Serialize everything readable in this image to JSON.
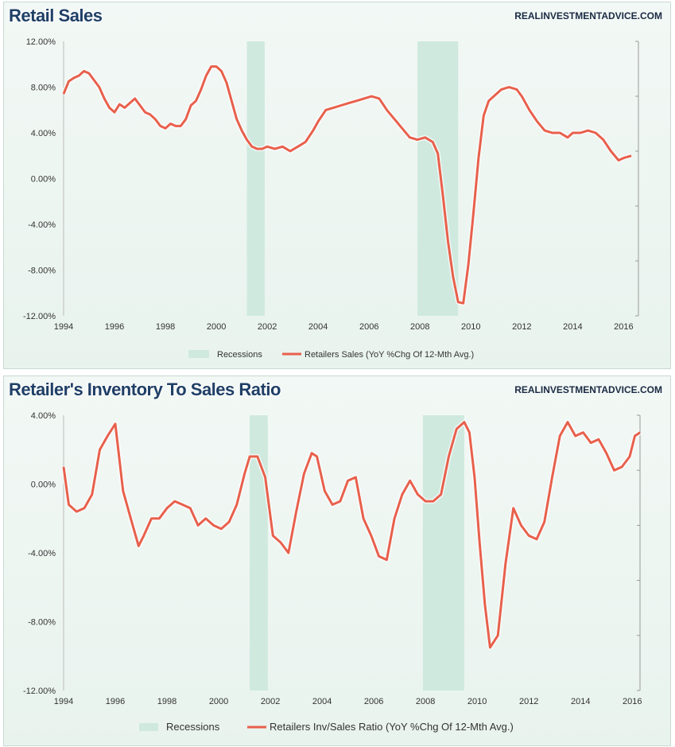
{
  "brand": "REALINVESTMENTADVICE.COM",
  "colors": {
    "line": "#e8604c",
    "recession": "#cfe9df",
    "axis": "#555555"
  },
  "chart_data": [
    {
      "type": "line",
      "title": "Retail Sales",
      "xlabel": "",
      "ylabel": "",
      "xlim": [
        1994,
        2016.3
      ],
      "ylim": [
        -12,
        12
      ],
      "yticks": [
        12,
        8,
        4,
        0,
        -4,
        -8,
        -12
      ],
      "ytick_labels": [
        "12.00%",
        "8.00%",
        "4.00%",
        "0.00%",
        "-4.00%",
        "-8.00%",
        "-12.00%"
      ],
      "xticks": [
        1994,
        1996,
        1998,
        2000,
        2002,
        2004,
        2006,
        2008,
        2010,
        2012,
        2014,
        2016
      ],
      "xtick_labels": [
        "1994",
        "1996",
        "1998",
        "2000",
        "2002",
        "2004",
        "2006",
        "2008",
        "2010",
        "2012",
        "2014",
        "2016"
      ],
      "recessions": [
        [
          2001.2,
          2001.9
        ],
        [
          2007.9,
          2009.5
        ]
      ],
      "legend": [
        "Recessions",
        "Retailers Sales (YoY %Chg Of 12-Mth Avg.)"
      ],
      "legend_position": "bottom",
      "series": [
        {
          "name": "Retailers Sales (YoY %Chg Of 12-Mth Avg.)",
          "x": [
            1994.0,
            1994.2,
            1994.4,
            1994.6,
            1994.8,
            1995.0,
            1995.2,
            1995.4,
            1995.6,
            1995.8,
            1996.0,
            1996.2,
            1996.4,
            1996.6,
            1996.8,
            1997.0,
            1997.2,
            1997.4,
            1997.6,
            1997.8,
            1998.0,
            1998.2,
            1998.4,
            1998.6,
            1998.8,
            1999.0,
            1999.2,
            1999.4,
            1999.6,
            1999.8,
            2000.0,
            2000.2,
            2000.4,
            2000.6,
            2000.8,
            2001.0,
            2001.2,
            2001.4,
            2001.6,
            2001.8,
            2002.0,
            2002.3,
            2002.6,
            2002.9,
            2003.2,
            2003.5,
            2003.8,
            2004.0,
            2004.3,
            2004.6,
            2004.9,
            2005.2,
            2005.5,
            2005.8,
            2006.1,
            2006.4,
            2006.7,
            2007.0,
            2007.3,
            2007.6,
            2007.9,
            2008.2,
            2008.5,
            2008.7,
            2008.9,
            2009.1,
            2009.3,
            2009.5,
            2009.7,
            2009.9,
            2010.1,
            2010.3,
            2010.5,
            2010.7,
            2010.9,
            2011.2,
            2011.5,
            2011.8,
            2012.0,
            2012.3,
            2012.6,
            2012.9,
            2013.2,
            2013.5,
            2013.8,
            2014.0,
            2014.3,
            2014.6,
            2014.9,
            2015.2,
            2015.5,
            2015.8,
            2016.0,
            2016.3
          ],
          "y": [
            7.4,
            8.5,
            8.8,
            9.0,
            9.4,
            9.2,
            8.6,
            8.0,
            7.0,
            6.2,
            5.8,
            6.5,
            6.2,
            6.6,
            7.0,
            6.4,
            5.8,
            5.6,
            5.2,
            4.6,
            4.4,
            4.8,
            4.6,
            4.6,
            5.2,
            6.4,
            6.8,
            7.8,
            9.0,
            9.8,
            9.8,
            9.4,
            8.4,
            6.8,
            5.2,
            4.2,
            3.4,
            2.8,
            2.6,
            2.6,
            2.8,
            2.6,
            2.8,
            2.4,
            2.8,
            3.2,
            4.2,
            5.0,
            6.0,
            6.2,
            6.4,
            6.6,
            6.8,
            7.0,
            7.2,
            7.0,
            6.0,
            5.2,
            4.4,
            3.6,
            3.4,
            3.6,
            3.2,
            2.2,
            -1.5,
            -5.5,
            -8.6,
            -10.8,
            -10.9,
            -7.5,
            -3.0,
            1.8,
            5.5,
            6.8,
            7.2,
            7.8,
            8.0,
            7.8,
            7.2,
            6.0,
            5.0,
            4.2,
            4.0,
            4.0,
            3.6,
            4.0,
            4.0,
            4.2,
            4.0,
            3.4,
            2.4,
            1.6,
            1.8,
            2.0
          ]
        }
      ]
    },
    {
      "type": "line",
      "title": "Retailer's Inventory To Sales Ratio",
      "xlabel": "",
      "ylabel": "",
      "xlim": [
        1994,
        2016.3
      ],
      "ylim": [
        -12,
        4
      ],
      "yticks": [
        4,
        0,
        -4,
        -8,
        -12
      ],
      "ytick_labels": [
        "4.00%",
        "0.00%",
        "-4.00%",
        "-8.00%",
        "-12.00%"
      ],
      "xticks": [
        1994,
        1996,
        1998,
        2000,
        2002,
        2004,
        2006,
        2008,
        2010,
        2012,
        2014,
        2016
      ],
      "xtick_labels": [
        "1994",
        "1996",
        "1998",
        "2000",
        "2002",
        "2004",
        "2006",
        "2008",
        "2010",
        "2012",
        "2014",
        "2016"
      ],
      "recessions": [
        [
          2001.2,
          2001.9
        ],
        [
          2007.9,
          2009.5
        ]
      ],
      "legend": [
        "Recessions",
        "Retailers Inv/Sales Ratio (YoY %Chg Of 12-Mth Avg.)"
      ],
      "legend_position": "bottom",
      "series": [
        {
          "name": "Retailers Inv/Sales Ratio (YoY %Chg Of 12-Mth Avg.)",
          "x": [
            1994.0,
            1994.2,
            1994.5,
            1994.8,
            1995.1,
            1995.4,
            1995.7,
            1996.0,
            1996.3,
            1996.6,
            1996.9,
            1997.1,
            1997.4,
            1997.7,
            1998.0,
            1998.3,
            1998.6,
            1998.9,
            1999.2,
            1999.5,
            1999.8,
            2000.1,
            2000.4,
            2000.7,
            2001.0,
            2001.2,
            2001.5,
            2001.8,
            2002.1,
            2002.4,
            2002.7,
            2003.0,
            2003.3,
            2003.6,
            2003.8,
            2004.1,
            2004.4,
            2004.7,
            2005.0,
            2005.3,
            2005.6,
            2005.9,
            2006.2,
            2006.5,
            2006.8,
            2007.1,
            2007.4,
            2007.7,
            2008.0,
            2008.3,
            2008.6,
            2008.9,
            2009.2,
            2009.5,
            2009.7,
            2009.9,
            2010.1,
            2010.3,
            2010.5,
            2010.8,
            2011.1,
            2011.4,
            2011.7,
            2012.0,
            2012.3,
            2012.6,
            2012.9,
            2013.2,
            2013.5,
            2013.8,
            2014.1,
            2014.4,
            2014.7,
            2015.0,
            2015.3,
            2015.6,
            2015.9,
            2016.1,
            2016.3
          ],
          "y": [
            1.0,
            -1.2,
            -1.6,
            -1.4,
            -0.6,
            2.0,
            2.8,
            3.5,
            -0.4,
            -2.0,
            -3.6,
            -3.0,
            -2.0,
            -2.0,
            -1.4,
            -1.0,
            -1.2,
            -1.4,
            -2.4,
            -2.0,
            -2.4,
            -2.6,
            -2.2,
            -1.2,
            0.6,
            1.6,
            1.6,
            0.4,
            -3.0,
            -3.4,
            -4.0,
            -1.6,
            0.6,
            1.8,
            1.6,
            -0.4,
            -1.2,
            -1.0,
            0.2,
            0.4,
            -2.0,
            -3.0,
            -4.2,
            -4.4,
            -2.0,
            -0.6,
            0.2,
            -0.6,
            -1.0,
            -1.0,
            -0.6,
            1.6,
            3.2,
            3.6,
            3.0,
            0.4,
            -3.5,
            -7.0,
            -9.5,
            -8.8,
            -4.6,
            -1.4,
            -2.4,
            -3.0,
            -3.2,
            -2.2,
            0.4,
            2.8,
            3.6,
            2.8,
            3.0,
            2.4,
            2.6,
            1.8,
            0.8,
            1.0,
            1.6,
            2.8,
            3.0
          ]
        }
      ]
    }
  ]
}
